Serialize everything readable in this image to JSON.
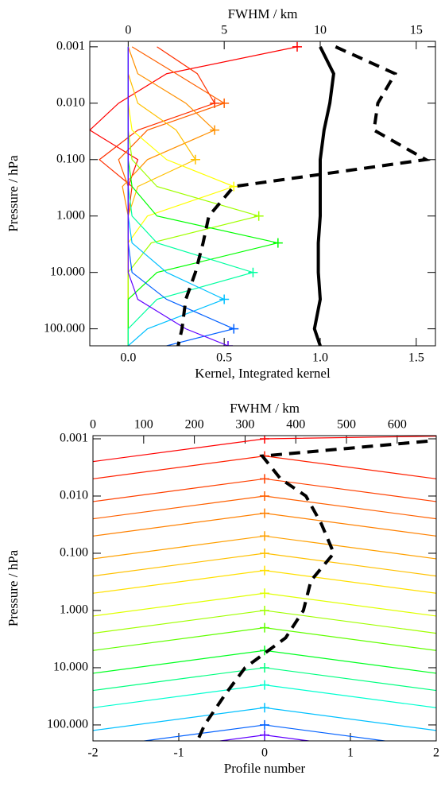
{
  "chart_data": [
    {
      "type": "kernel",
      "x_label": "Kernel, Integrated kernel",
      "x2_label": "FWHM / km",
      "y_label": "Pressure / hPa",
      "xlim": [
        -0.2,
        1.6
      ],
      "xticks": [
        {
          "value": 0,
          "label": "0.0"
        },
        {
          "value": 0.5,
          "label": "0.5"
        },
        {
          "value": 1,
          "label": "1.0"
        },
        {
          "value": 1.5,
          "label": "1.5"
        }
      ],
      "x2lim": [
        -2,
        16
      ],
      "x2ticks": [
        0,
        5,
        10,
        15
      ],
      "ylim": [
        0.0008,
        200
      ],
      "y_log": true,
      "y_inverted": true,
      "yticks": [
        {
          "value": 0.001,
          "label": "0.001"
        },
        {
          "value": 0.01,
          "label": "0.010"
        },
        {
          "value": 0.1,
          "label": "0.100"
        },
        {
          "value": 1,
          "label": "1.000"
        },
        {
          "value": 10,
          "label": "10.000"
        },
        {
          "value": 100,
          "label": "100.000"
        }
      ],
      "levels": [
        0.001,
        0.003,
        0.01,
        0.03,
        0.1,
        0.3,
        1,
        3,
        10,
        30,
        100,
        200
      ],
      "peak_markers": true,
      "series": [
        {
          "color": "#ff0000",
          "values": [
            0.88,
            0.2,
            -0.05,
            -0.2,
            0.05,
            0,
            0,
            0,
            0,
            0,
            0,
            0
          ]
        },
        {
          "color": "#ff3000",
          "values": [
            0.15,
            0.36,
            0.45,
            0.05,
            -0.15,
            0.02,
            0,
            0,
            0,
            0,
            0,
            0
          ]
        },
        {
          "color": "#ff6000",
          "values": [
            0.02,
            0.25,
            0.5,
            0.1,
            -0.05,
            0,
            0,
            0,
            0,
            0,
            0,
            0
          ]
        },
        {
          "color": "#ff9000",
          "values": [
            0,
            0.05,
            0.3,
            0.45,
            0.1,
            -0.03,
            0,
            0,
            0,
            0,
            0,
            0
          ]
        },
        {
          "color": "#ffc000",
          "values": [
            0,
            0,
            0.05,
            0.25,
            0.35,
            0.05,
            0,
            0,
            0,
            0,
            0,
            0
          ]
        },
        {
          "color": "#ffff00",
          "values": [
            0,
            0,
            0,
            0.02,
            0.2,
            0.55,
            0.1,
            0,
            0,
            0,
            0,
            0
          ]
        },
        {
          "color": "#a0ff00",
          "values": [
            0,
            0,
            0,
            0,
            0.02,
            0.15,
            0.68,
            0.12,
            0,
            0,
            0,
            0
          ]
        },
        {
          "color": "#00ff00",
          "values": [
            0,
            0,
            0,
            0,
            0,
            0.02,
            0.15,
            0.78,
            0.15,
            0,
            0,
            0
          ]
        },
        {
          "color": "#00ffa0",
          "values": [
            0,
            0,
            0,
            0,
            0,
            0,
            0.02,
            0.15,
            0.65,
            0.15,
            0,
            0
          ]
        },
        {
          "color": "#00c0ff",
          "values": [
            0,
            0,
            0,
            0,
            0,
            0,
            0,
            0.02,
            0.2,
            0.5,
            0.1,
            0
          ]
        },
        {
          "color": "#0060ff",
          "values": [
            0,
            0,
            0,
            0,
            0,
            0,
            0,
            0,
            0.02,
            0.2,
            0.55,
            0.2
          ]
        },
        {
          "color": "#6000ff",
          "values": [
            0,
            0,
            0,
            0,
            0,
            0,
            0,
            0,
            0,
            0.05,
            0.3,
            0.52
          ]
        },
        {
          "color": "#000000",
          "style": "solid",
          "values": [
            1.0,
            1.07,
            1.05,
            1.02,
            1.0,
            1.0,
            1.0,
            0.99,
            0.99,
            1.0,
            0.97,
            1.0
          ]
        },
        {
          "color": "#000000",
          "style": "dashed",
          "axis": "x2",
          "values": [
            10.8,
            13.9,
            13.0,
            12.8,
            15.5,
            5.5,
            4.2,
            3.9,
            3.5,
            3.0,
            2.8,
            2.6
          ]
        }
      ]
    },
    {
      "type": "profile",
      "x_label": "Profile number",
      "x2_label": "FWHM / km",
      "y_label": "Pressure / hPa",
      "xlim": [
        -2,
        2
      ],
      "xticks": [
        -2,
        -1,
        0,
        1,
        2
      ],
      "x2lim": [
        0,
        677
      ],
      "x2ticks": [
        0,
        100,
        200,
        300,
        400,
        500,
        600
      ],
      "ylim": [
        0.00088,
        190
      ],
      "y_log": true,
      "y_inverted": true,
      "yticks": [
        {
          "value": 0.001,
          "label": "0.001"
        },
        {
          "value": 0.01,
          "label": "0.010"
        },
        {
          "value": 0.1,
          "label": "0.100"
        },
        {
          "value": 1,
          "label": "1.000"
        },
        {
          "value": 10,
          "label": "10.000"
        },
        {
          "value": 100,
          "label": "100.000"
        }
      ],
      "x": [
        -2,
        0,
        2
      ],
      "center_markers": true,
      "series": [
        {
          "color": "#ff0000",
          "values": [
            0.0025,
            0.001,
            0.0009
          ]
        },
        {
          "color": "#ff2000",
          "values": [
            0.005,
            0.002,
            0.005
          ]
        },
        {
          "color": "#ff4000",
          "values": [
            0.0125,
            0.005,
            0.0125
          ]
        },
        {
          "color": "#ff6000",
          "values": [
            0.025,
            0.01,
            0.025
          ]
        },
        {
          "color": "#ff8000",
          "values": [
            0.05,
            0.02,
            0.05
          ]
        },
        {
          "color": "#ffa000",
          "values": [
            0.125,
            0.05,
            0.125
          ]
        },
        {
          "color": "#ffc000",
          "values": [
            0.25,
            0.1,
            0.25
          ]
        },
        {
          "color": "#ffe000",
          "values": [
            0.5,
            0.2,
            0.5
          ]
        },
        {
          "color": "#e0ff00",
          "values": [
            1.25,
            0.5,
            1.25
          ]
        },
        {
          "color": "#a0ff00",
          "values": [
            2.5,
            1,
            2.5
          ]
        },
        {
          "color": "#60ff00",
          "values": [
            5,
            2,
            5
          ]
        },
        {
          "color": "#00ff20",
          "values": [
            12.5,
            5,
            12.5
          ]
        },
        {
          "color": "#00ff80",
          "values": [
            25,
            10,
            25
          ]
        },
        {
          "color": "#00ffd0",
          "values": [
            50,
            20,
            50
          ]
        },
        {
          "color": "#00c0ff",
          "values": [
            125,
            50,
            125
          ]
        },
        {
          "color": "#0060ff",
          "values": [
            250,
            100,
            250
          ]
        },
        {
          "color": "#6000ff",
          "values": [
            375,
            150,
            375
          ]
        }
      ],
      "fwhm": {
        "color": "#000000",
        "style": "dashed",
        "axis": "x2",
        "levels": [
          0.0011,
          0.002,
          0.005,
          0.01,
          0.03,
          0.1,
          0.3,
          1,
          3,
          10,
          30,
          100,
          200
        ],
        "values": [
          660,
          334,
          370,
          420,
          450,
          475,
          430,
          415,
          380,
          300,
          260,
          220,
          205
        ]
      }
    }
  ]
}
